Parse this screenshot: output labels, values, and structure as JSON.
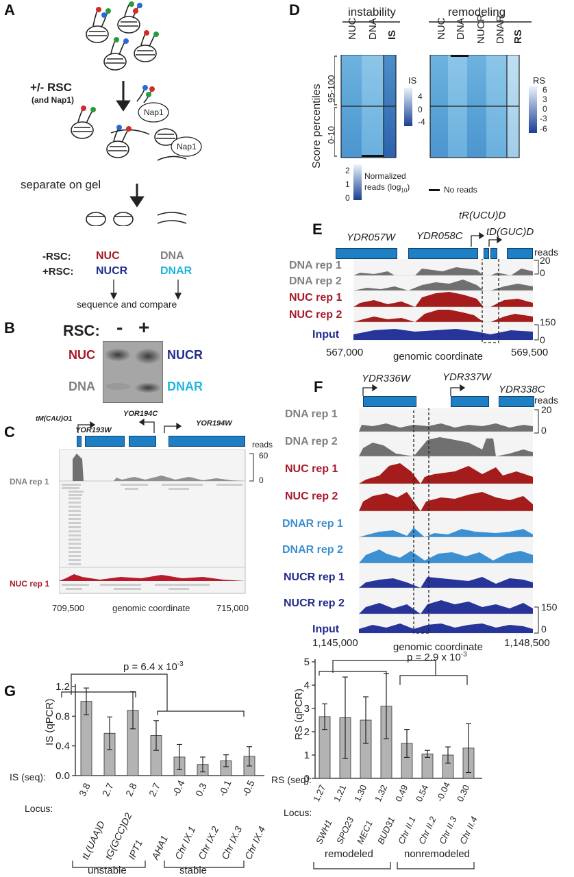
{
  "panels": {
    "A": "A",
    "B": "B",
    "C": "C",
    "D": "D",
    "E": "E",
    "F": "F",
    "G": "G"
  },
  "panelA": {
    "rsc_step": "+/- RSC",
    "rsc_sub": "(and Nap1)",
    "nap1": "Nap1",
    "separate": "separate on gel",
    "minus_rsc": "-RSC:",
    "plus_rsc": "+RSC:",
    "nuc": "NUC",
    "nucr": "NUCR",
    "dna": "DNA",
    "dnar": "DNAR",
    "sequence": "sequence and compare"
  },
  "panelB": {
    "rsc": "RSC:",
    "minus": "-",
    "plus": "+",
    "nuc": "NUC",
    "dna": "DNA",
    "nucr": "NUCR",
    "dnar": "DNAR"
  },
  "panelC": {
    "genes": [
      "tM(CAU)O1",
      "YOR193W",
      "YOR194C",
      "YOR194W"
    ],
    "reads": "reads",
    "scale_top": "60",
    "scale_bot": "0",
    "track1": "DNA rep 1",
    "track2": "NUC rep 1",
    "x_start": "709,500",
    "x_end": "715,000",
    "x_label": "genomic coordinate"
  },
  "panelD": {
    "instability": "instability",
    "remodeling": "remodeling",
    "cols_left": [
      "NUC",
      "DNA",
      "IS"
    ],
    "cols_right": [
      "NUC",
      "DNA",
      "NUCR",
      "DNAR",
      "RS"
    ],
    "ylabel": "Score percentiles",
    "pct_top": "95-100",
    "pct_bot": "0-10",
    "is_label": "IS",
    "is_ticks": [
      "4",
      "0",
      "-4"
    ],
    "rs_label": "RS",
    "rs_ticks": [
      "6",
      "3",
      "0",
      "-3",
      "-6"
    ],
    "norm_ticks": [
      "2",
      "1",
      "0"
    ],
    "norm_label1": "Normalized",
    "norm_label2": "reads (log",
    "norm_sub": "10",
    "no_reads": "No reads"
  },
  "panelE": {
    "genes": [
      "YDR057W",
      "YDR058C",
      "tR(UCU)D",
      "tD(GUC)D"
    ],
    "reads": "reads",
    "tracks": [
      "DNA rep 1",
      "DNA rep 2",
      "NUC rep 1",
      "NUC rep 2",
      "Input"
    ],
    "scale1_top": "20",
    "scale1_bot": "0",
    "scale2_top": "150",
    "scale2_bot": "0",
    "x_start": "567,000",
    "x_end": "569,500",
    "x_label": "genomic coordinate"
  },
  "panelF": {
    "genes": [
      "YDR336W",
      "YDR337W",
      "YDR338C"
    ],
    "reads": "reads",
    "tracks": [
      "DNA rep 1",
      "DNA rep 2",
      "NUC rep 1",
      "NUC rep 2",
      "DNAR rep 1",
      "DNAR rep 2",
      "NUCR rep 1",
      "NUCR rep 2",
      "Input"
    ],
    "scale1_top": "20",
    "scale1_bot": "0",
    "scale2_top": "150",
    "scale2_bot": "0",
    "x_start": "1,145,000",
    "x_end": "1,148,500",
    "x_label": "genomic coordinate"
  },
  "panelG": {
    "left": {
      "pval": "p = 6.4 x 10",
      "pexp": "-3",
      "ylabel": "IS (qPCR)",
      "seq_label": "IS (seq):",
      "locus_label": "Locus:",
      "seq_values": [
        "3.8",
        "2.7",
        "2.8",
        "2.7",
        "-0.4",
        "0.3",
        "-0.1",
        "-0.5"
      ],
      "loci": [
        "tL(UAA)D",
        "tG(GCC)D2",
        "IPT1",
        "AHA1",
        "Chr IX.1",
        "Chr IX.2",
        "Chr IX.3",
        "Chr IX.4"
      ],
      "group1": "unstable",
      "group2": "stable",
      "yticks": [
        "1.2",
        "0.8",
        "0.4",
        "0.0"
      ]
    },
    "right": {
      "pval": "p = 2.9 x 10",
      "pexp": "-3",
      "ylabel": "RS (qPCR)",
      "seq_label": "RS (seq):",
      "locus_label": "Locus:",
      "seq_values": [
        "1.27",
        "1.21",
        "1.30",
        "1.32",
        "0.49",
        "0.54",
        "-0.04",
        "0.30"
      ],
      "loci": [
        "SWH1",
        "SPO23",
        "MEC1",
        "BUD31",
        "Chr II.1",
        "Chr II.2",
        "Chr II.3",
        "Chr II.4"
      ],
      "group1": "remodeled",
      "group2": "nonremodeled",
      "yticks": [
        "5",
        "4",
        "3",
        "2",
        "1",
        "0"
      ]
    }
  },
  "chart_data": [
    {
      "type": "bar",
      "ylabel": "IS (qPCR)",
      "ylim": [
        0,
        1.2
      ],
      "categories": [
        "tL(UAA)D",
        "tG(GCC)D2",
        "IPT1",
        "AHA1",
        "Chr IX.1",
        "Chr IX.2",
        "Chr IX.3",
        "Chr IX.4"
      ],
      "values": [
        1.0,
        0.57,
        0.88,
        0.54,
        0.25,
        0.15,
        0.2,
        0.26
      ],
      "errors": [
        0.18,
        0.22,
        0.25,
        0.2,
        0.17,
        0.1,
        0.08,
        0.13
      ]
    },
    {
      "type": "bar",
      "ylabel": "RS (qPCR)",
      "ylim": [
        0,
        5
      ],
      "categories": [
        "SWH1",
        "SPO23",
        "MEC1",
        "BUD31",
        "Chr II.1",
        "Chr II.2",
        "Chr II.3",
        "Chr II.4"
      ],
      "values": [
        2.65,
        2.6,
        2.5,
        3.1,
        1.5,
        1.05,
        1.0,
        1.3
      ],
      "errors": [
        0.55,
        1.75,
        1.0,
        1.4,
        0.6,
        0.15,
        0.35,
        1.05
      ]
    }
  ],
  "colors": {
    "red": "#a8192a",
    "navy": "#222c8c",
    "gray": "#808080",
    "cyan": "#20b4e0",
    "lightblue": "#3b8fd0",
    "gene": "#1f7fc5"
  }
}
